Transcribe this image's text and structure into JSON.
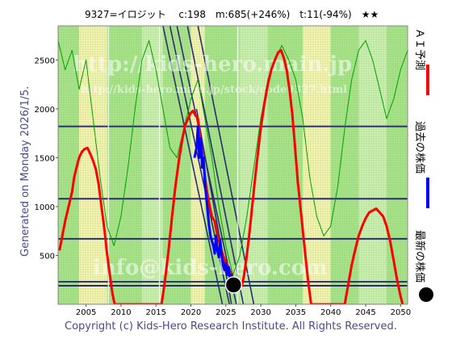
{
  "header": {
    "title": "9327=イロジット　 c:198　m:685(+246%)　t:11(-94%)　★★"
  },
  "side_label": "Generated on Monday 2026/1/5.",
  "footer": "Copyright (c) Kids-Hero Research Institute. All Rights Reserved.",
  "watermarks": {
    "line1": "http://kids-hero.main.jp",
    "line2": "http://kids-hero.main.jp/stock/code9327.html",
    "line3": "info@kids-hero.com"
  },
  "legend": [
    {
      "label": "ＡＩ予測",
      "color": "#ff0000"
    },
    {
      "label": "過去の株価",
      "color": "#0000ff"
    },
    {
      "label": "最新の株価",
      "color": "#000000"
    }
  ],
  "chart_data": {
    "type": "line",
    "xlim": [
      2001,
      2051
    ],
    "ylim": [
      0,
      2850
    ],
    "x_ticks": [
      2005,
      2010,
      2015,
      2020,
      2025,
      2030,
      2035,
      2040,
      2045,
      2050
    ],
    "y_ticks": [
      500,
      1000,
      1500,
      2000,
      2500
    ],
    "horizontal_levels": [
      1820,
      1080,
      670,
      230,
      190
    ],
    "diagonal_lines": [
      [
        [
          2016.0,
          2850
        ],
        [
          2024.5,
          0
        ]
      ],
      [
        [
          2017.0,
          2850
        ],
        [
          2025.5,
          0
        ]
      ],
      [
        [
          2018.0,
          2850
        ],
        [
          2026.5,
          0
        ]
      ],
      [
        [
          2019.5,
          2850
        ],
        [
          2027.5,
          0
        ]
      ],
      [
        [
          2021.0,
          2850
        ],
        [
          2029.0,
          0
        ]
      ],
      [
        [
          2020.8,
          2000
        ],
        [
          2025.8,
          0
        ]
      ]
    ],
    "vertical_lines": [
      2008.2,
      2015.5,
      2026.7
    ],
    "colors": {
      "ai_forecast": "#ff0000",
      "past_price": "#0000ff",
      "latest_price": "#000000",
      "bg_green": "#a8e28a",
      "bg_lightgreen": "#cdeeb1",
      "bg_yellow": "#f6f3b2",
      "trend_lines": "#2c2c74",
      "secondary_green": "#00a000"
    },
    "series": [
      {
        "role": "ai_forecast",
        "x": [
          2001.2,
          2001.6,
          2002,
          2002.5,
          2003,
          2003.3,
          2003.7,
          2004,
          2004.4,
          2004.8,
          2005.2,
          2005.6,
          2006,
          2006.4,
          2006.8,
          2007.2,
          2007.6,
          2008,
          2008.4,
          2008.8,
          2009.1,
          2015.8,
          2016.3,
          2016.8,
          2017.3,
          2017.8,
          2018.3,
          2018.8,
          2019.2,
          2019.6,
          2019.9,
          2020.3,
          2020.6,
          2021.0,
          2021.3,
          2021.7,
          2022.0,
          2022.3,
          2022.7,
          2023.0,
          2023.4,
          2023.8,
          2024.2,
          2024.6,
          2025.0,
          2025.4,
          2025.8,
          2026.2,
          2026.6,
          2027.0,
          2027.3,
          2027.6,
          2028.0,
          2028.4,
          2028.8,
          2029.2,
          2029.6,
          2030,
          2030.5,
          2031,
          2031.5,
          2032,
          2032.5,
          2032.9,
          2033.3,
          2033.7,
          2034.1,
          2034.5,
          2034.9,
          2035.3,
          2035.8,
          2036.3,
          2036.8,
          2037.2,
          2042.0,
          2042.5,
          2043,
          2043.5,
          2044,
          2044.5,
          2045,
          2045.5,
          2046,
          2046.5,
          2047,
          2047.5,
          2048,
          2048.5,
          2049,
          2049.5,
          2050,
          2050.3
        ],
        "y": [
          550,
          700,
          850,
          1000,
          1150,
          1300,
          1420,
          1500,
          1560,
          1590,
          1600,
          1540,
          1470,
          1380,
          1230,
          1000,
          780,
          520,
          300,
          100,
          0,
          0,
          250,
          550,
          900,
          1220,
          1480,
          1700,
          1840,
          1900,
          1950,
          1980,
          1940,
          1900,
          1700,
          1500,
          1300,
          1150,
          1000,
          900,
          850,
          700,
          600,
          500,
          430,
          380,
          300,
          260,
          230,
          200,
          190,
          300,
          500,
          750,
          1020,
          1300,
          1560,
          1800,
          2050,
          2250,
          2400,
          2500,
          2580,
          2600,
          2520,
          2400,
          2200,
          1950,
          1600,
          1250,
          900,
          550,
          220,
          0,
          0,
          200,
          400,
          560,
          700,
          800,
          880,
          940,
          960,
          980,
          940,
          900,
          800,
          650,
          450,
          250,
          80,
          0
        ]
      },
      {
        "role": "past_price",
        "x": [
          2020.5,
          2020.8,
          2021.0,
          2021.2,
          2021.4,
          2021.6,
          2021.8,
          2022.0,
          2022.2,
          2022.4,
          2022.6,
          2022.8,
          2023.0,
          2023.2,
          2023.4,
          2023.6,
          2023.8,
          2024.0,
          2024.2,
          2024.4,
          2024.6,
          2024.8,
          2025.0,
          2025.2,
          2025.4,
          2025.6,
          2025.8,
          2026.0
        ],
        "y": [
          1500,
          1600,
          1820,
          1500,
          1700,
          1400,
          1500,
          1250,
          1100,
          950,
          800,
          700,
          650,
          600,
          520,
          700,
          550,
          480,
          650,
          500,
          400,
          350,
          420,
          300,
          380,
          250,
          300,
          200
        ]
      },
      {
        "role": "secondary_green",
        "x": [
          2001,
          2002,
          2003,
          2004,
          2005,
          2006,
          2007,
          2008,
          2009,
          2010,
          2011,
          2012,
          2013,
          2014,
          2015,
          2016,
          2017,
          2018,
          2019,
          2020,
          2021,
          2022,
          2023,
          2024,
          2025,
          2026,
          2027,
          2028,
          2029,
          2030,
          2031,
          2032,
          2033,
          2034,
          2035,
          2036,
          2037,
          2038,
          2039,
          2040,
          2041,
          2042,
          2043,
          2044,
          2045,
          2046,
          2047,
          2048,
          2049,
          2050,
          2051
        ],
        "y": [
          2700,
          2400,
          2600,
          2200,
          2500,
          1900,
          1300,
          800,
          600,
          900,
          1400,
          2000,
          2500,
          2700,
          2400,
          2000,
          1600,
          1500,
          1800,
          2100,
          2300,
          1900,
          1500,
          1000,
          600,
          300,
          500,
          900,
          1400,
          1900,
          2300,
          2500,
          2650,
          2500,
          2300,
          1900,
          1300,
          900,
          700,
          800,
          1200,
          1800,
          2300,
          2600,
          2700,
          2500,
          2200,
          1900,
          2100,
          2400,
          2600
        ]
      }
    ],
    "latest_point": {
      "x": 2026.1,
      "y": 198
    }
  }
}
